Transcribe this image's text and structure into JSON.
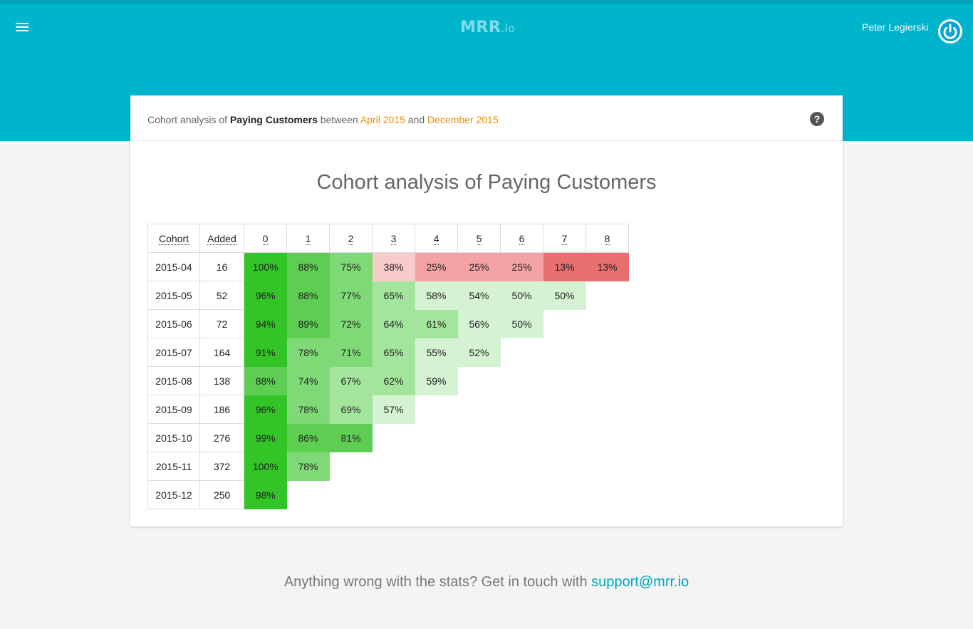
{
  "header": {
    "brand": "MRR",
    "brand_suffix": ".io",
    "user_name": "Peter Legierski",
    "colors": {
      "bar": "#00b4cc",
      "accent": "#f08c00",
      "link": "#00a6be"
    }
  },
  "card": {
    "subtitle": {
      "prefix": "Cohort analysis of ",
      "metric": "Paying Customers",
      "between": " between ",
      "start": "April 2015",
      "and": " and ",
      "end": "December 2015"
    },
    "help_label": "?"
  },
  "chart_data": {
    "type": "table",
    "title": "Cohort analysis of Paying Customers",
    "columns": [
      "Cohort",
      "Added",
      "0",
      "1",
      "2",
      "3",
      "4",
      "5",
      "6",
      "7",
      "8"
    ],
    "rows": [
      {
        "cohort": "2015-04",
        "added": "16",
        "values": [
          "100%",
          "88%",
          "75%",
          "38%",
          "25%",
          "25%",
          "25%",
          "13%",
          "13%"
        ]
      },
      {
        "cohort": "2015-05",
        "added": "52",
        "values": [
          "96%",
          "88%",
          "77%",
          "65%",
          "58%",
          "54%",
          "50%",
          "50%"
        ]
      },
      {
        "cohort": "2015-06",
        "added": "72",
        "values": [
          "94%",
          "89%",
          "72%",
          "64%",
          "61%",
          "56%",
          "50%"
        ]
      },
      {
        "cohort": "2015-07",
        "added": "164",
        "values": [
          "91%",
          "78%",
          "71%",
          "65%",
          "55%",
          "52%"
        ]
      },
      {
        "cohort": "2015-08",
        "added": "138",
        "values": [
          "88%",
          "74%",
          "67%",
          "62%",
          "59%"
        ]
      },
      {
        "cohort": "2015-09",
        "added": "186",
        "values": [
          "96%",
          "78%",
          "69%",
          "57%"
        ]
      },
      {
        "cohort": "2015-10",
        "added": "276",
        "values": [
          "99%",
          "86%",
          "81%"
        ]
      },
      {
        "cohort": "2015-11",
        "added": "372",
        "values": [
          "100%",
          "78%"
        ]
      },
      {
        "cohort": "2015-12",
        "added": "250",
        "values": [
          "98%"
        ]
      }
    ],
    "cell_colors": [
      [
        "#33c427",
        "#5ece53",
        "#7fd976",
        "#f8cbcb",
        "#f4a2a3",
        "#f4a2a3",
        "#f4a2a3",
        "#ea6f70",
        "#ea6f70"
      ],
      [
        "#33c427",
        "#5ece53",
        "#7fd976",
        "#a4e59e",
        "#d5f2d2",
        "#d5f2d2",
        "#d5f2d2",
        "#d5f2d2"
      ],
      [
        "#33c427",
        "#5ece53",
        "#7fd976",
        "#a4e59e",
        "#a4e59e",
        "#d5f2d2",
        "#d5f2d2"
      ],
      [
        "#33c427",
        "#7fd976",
        "#7fd976",
        "#a4e59e",
        "#d5f2d2",
        "#d5f2d2"
      ],
      [
        "#5ece53",
        "#7fd976",
        "#a4e59e",
        "#a4e59e",
        "#d5f2d2"
      ],
      [
        "#33c427",
        "#7fd976",
        "#a4e59e",
        "#d5f2d2"
      ],
      [
        "#33c427",
        "#5ece53",
        "#5ece53"
      ],
      [
        "#33c427",
        "#7fd976"
      ],
      [
        "#33c427"
      ]
    ]
  },
  "footer": {
    "text": "Anything wrong with the stats? Get in touch with ",
    "email": "support@mrr.io"
  }
}
